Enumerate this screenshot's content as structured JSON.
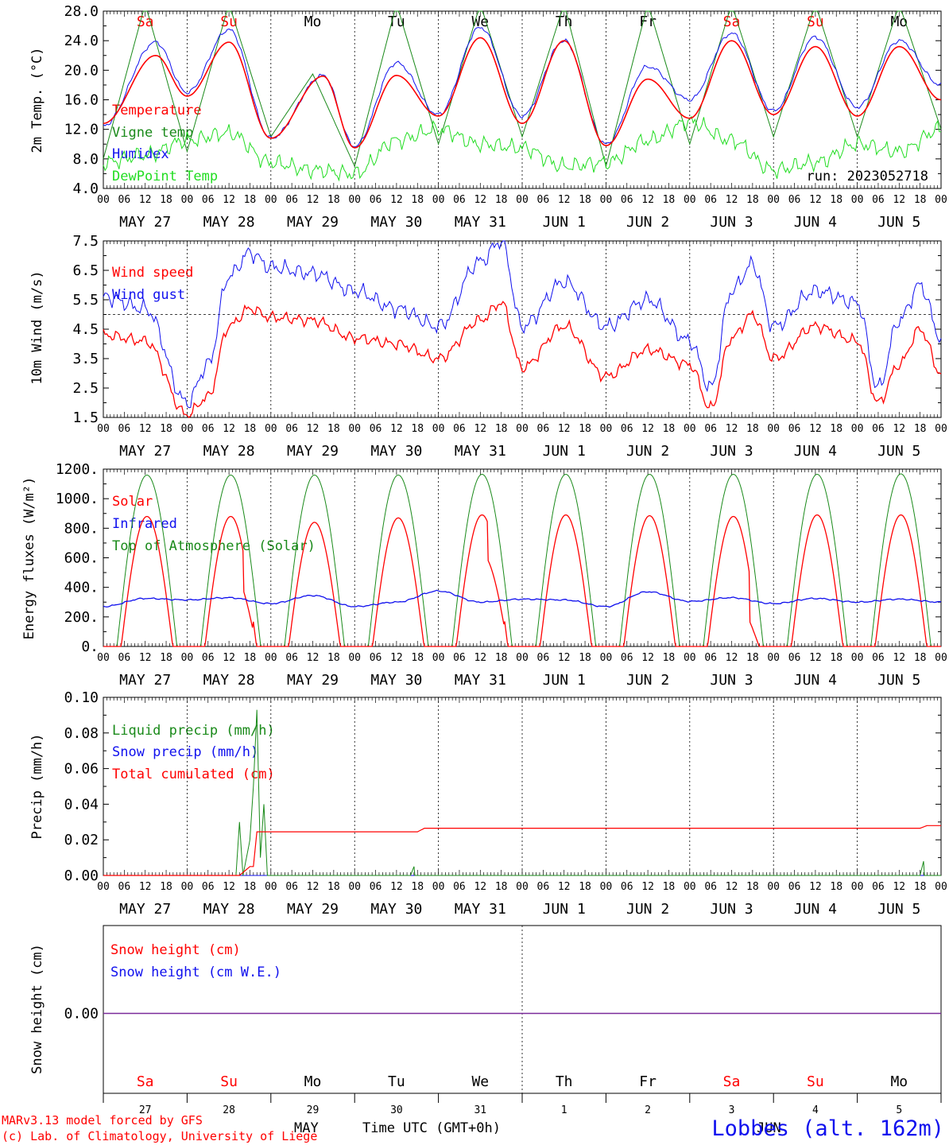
{
  "run_label": "run: 2023052718",
  "station": "Lobbes (alt. 162m)",
  "footer": {
    "line1": "MARv3.13 model forced by GFS",
    "line2": "(c) Lab. of Climatology, University of Liege",
    "time_label": "Time UTC (GMT+0h)",
    "month_may": "MAY",
    "month_jun": "JUN"
  },
  "hours": [
    "00",
    "06",
    "12",
    "18"
  ],
  "dates": [
    "MAY 27",
    "MAY 28",
    "MAY 29",
    "MAY 30",
    "MAY 31",
    "JUN  1",
    "JUN  2",
    "JUN  3",
    "JUN  4",
    "JUN  5"
  ],
  "weekdays": [
    "Sa",
    "Su",
    "Mo",
    "Tu",
    "We",
    "Th",
    "Fr",
    "Sa",
    "Su",
    "Mo"
  ],
  "weekday_colors": [
    "#ff0000",
    "#ff0000",
    "#000000",
    "#000000",
    "#000000",
    "#000000",
    "#000000",
    "#ff0000",
    "#ff0000",
    "#000000"
  ],
  "day_numbers": [
    "27",
    "28",
    "29",
    "30",
    "31",
    "1",
    "2",
    "3",
    "4",
    "5"
  ],
  "colors": {
    "red": "#ff0000",
    "green": "#1a8a1a",
    "blue": "#1010ee",
    "lime": "#22dd22",
    "purple": "#7a2a9a"
  },
  "chart_data": [
    {
      "type": "line",
      "ylabel": "2m Temp. (°C)",
      "ylim": [
        4,
        28
      ],
      "yticks": [
        "4.0",
        "8.0",
        "12.0",
        "16.0",
        "20.0",
        "24.0",
        "28.0"
      ],
      "x_unit": "hours since May 27 00 UTC",
      "series": [
        {
          "name": "Temperature",
          "x": [
            0,
            15,
            24,
            36,
            48,
            63,
            72,
            84,
            96,
            108,
            120,
            132,
            144,
            156,
            168,
            180,
            192,
            204,
            216,
            228,
            240
          ],
          "y": [
            12.8,
            22.0,
            16.5,
            23.8,
            10.8,
            19.2,
            9.5,
            19.3,
            13.8,
            24.4,
            12.8,
            24.0,
            9.8,
            18.8,
            13.5,
            24.0,
            14.0,
            23.2,
            13.8,
            23.2,
            16.0
          ]
        },
        {
          "name": "Vigne temp",
          "x": [
            0,
            12,
            24,
            36,
            48,
            60,
            72,
            84,
            96,
            108,
            120,
            132,
            144,
            156,
            168,
            180,
            192,
            204,
            216,
            228,
            240
          ],
          "y": [
            8.0,
            29.0,
            9.0,
            29.0,
            11.0,
            19.5,
            7.0,
            29.0,
            10.0,
            29.0,
            11.0,
            29.0,
            7.0,
            29.0,
            10.0,
            29.0,
            11.0,
            29.0,
            11.0,
            29.0,
            12.0
          ]
        },
        {
          "name": "Humidex",
          "x": [
            0,
            15,
            24,
            36,
            48,
            63,
            72,
            84,
            96,
            108,
            120,
            132,
            144,
            156,
            168,
            180,
            192,
            204,
            216,
            228,
            240
          ],
          "y": [
            12.5,
            23.8,
            17.0,
            25.5,
            10.8,
            19.3,
            9.7,
            21.0,
            14.0,
            25.8,
            13.8,
            24.0,
            10.0,
            20.5,
            16.0,
            25.0,
            14.5,
            24.5,
            15.0,
            24.0,
            18.0
          ]
        },
        {
          "name": "DewPoint Temp",
          "x": [
            0,
            12,
            24,
            36,
            48,
            60,
            72,
            84,
            96,
            108,
            120,
            132,
            144,
            156,
            168,
            180,
            192,
            204,
            216,
            228,
            240
          ],
          "y": [
            7.5,
            8.5,
            10.5,
            11.5,
            7.5,
            6.5,
            6.0,
            10.5,
            12.0,
            10.0,
            9.5,
            7.0,
            7.5,
            10.5,
            13.0,
            10.5,
            6.5,
            7.5,
            10.0,
            9.0,
            12.0
          ]
        }
      ]
    },
    {
      "type": "line",
      "ylabel": "10m Wind (m/s)",
      "ylim": [
        1.5,
        7.5
      ],
      "yticks": [
        "1.5",
        "2.5",
        "3.5",
        "4.5",
        "5.5",
        "6.5",
        "7.5"
      ],
      "reference_line": 5.0,
      "series": [
        {
          "name": "Wind speed",
          "x": [
            0,
            12,
            24,
            30,
            36,
            42,
            48,
            60,
            72,
            84,
            96,
            108,
            114,
            120,
            132,
            144,
            156,
            168,
            174,
            180,
            186,
            192,
            204,
            216,
            222,
            228,
            234,
            240
          ],
          "y": [
            4.3,
            4.1,
            1.6,
            2.2,
            4.6,
            5.2,
            4.9,
            4.8,
            4.2,
            4.0,
            3.5,
            4.8,
            5.4,
            3.2,
            4.6,
            2.9,
            3.8,
            3.3,
            1.8,
            4.2,
            5.0,
            3.5,
            4.6,
            4.1,
            2.0,
            3.3,
            4.5,
            3.0
          ]
        },
        {
          "name": "Wind gust",
          "x": [
            0,
            12,
            24,
            30,
            36,
            42,
            48,
            60,
            72,
            84,
            96,
            108,
            114,
            120,
            132,
            144,
            156,
            168,
            174,
            180,
            186,
            192,
            204,
            216,
            222,
            228,
            234,
            240
          ],
          "y": [
            5.6,
            5.2,
            2.0,
            3.3,
            6.3,
            7.1,
            6.6,
            6.4,
            5.8,
            5.2,
            4.6,
            6.8,
            7.5,
            4.6,
            6.1,
            4.6,
            5.5,
            4.1,
            2.5,
            5.8,
            6.7,
            4.6,
            5.8,
            5.4,
            2.5,
            4.8,
            6.0,
            4.2
          ]
        }
      ]
    },
    {
      "type": "line",
      "ylabel": "Energy fluxes (W/m²)",
      "ylim": [
        0,
        1200
      ],
      "yticks": [
        "0.",
        "200.",
        "400.",
        "600.",
        "800.",
        "1000.",
        "1200."
      ],
      "series": [
        {
          "name": "Solar",
          "daily_peak": [
            880,
            880,
            840,
            870,
            890,
            890,
            885,
            880,
            890,
            890
          ]
        },
        {
          "name": "Infrared",
          "x": [
            0,
            12,
            24,
            36,
            48,
            60,
            72,
            84,
            96,
            108,
            120,
            132,
            144,
            156,
            168,
            180,
            192,
            204,
            216,
            228,
            240
          ],
          "y": [
            270,
            325,
            315,
            330,
            290,
            345,
            270,
            300,
            375,
            300,
            320,
            315,
            270,
            370,
            305,
            330,
            290,
            325,
            300,
            320,
            300
          ]
        },
        {
          "name": "Top of Atmosphere (Solar)",
          "daily_peak": [
            1160,
            1160,
            1160,
            1160,
            1165,
            1165,
            1165,
            1165,
            1165,
            1168
          ]
        }
      ]
    },
    {
      "type": "line",
      "ylabel": "Precip (mm/h)",
      "ylim": [
        0,
        0.1
      ],
      "yticks": [
        "0.00",
        "0.02",
        "0.04",
        "0.06",
        "0.08",
        "0.10"
      ],
      "series": [
        {
          "name": "Liquid precip (mm/h)",
          "x": [
            38,
            39,
            40,
            41,
            42,
            43,
            44,
            45,
            46,
            47,
            88,
            89,
            234,
            235
          ],
          "y": [
            0,
            0.03,
            0,
            0.01,
            0.02,
            0.05,
            0.093,
            0.01,
            0.04,
            0,
            0,
            0.005,
            0,
            0.008
          ]
        },
        {
          "name": "Snow precip (mm/h)",
          "x": [
            0,
            240
          ],
          "y": [
            0,
            0
          ]
        },
        {
          "name": "Total cumulated (cm)",
          "x": [
            0,
            39,
            42,
            43,
            44,
            90,
            92,
            234,
            236,
            240
          ],
          "y": [
            0,
            0,
            0.005,
            0.005,
            0.0245,
            0.0245,
            0.0265,
            0.0265,
            0.028,
            0.028
          ]
        }
      ]
    },
    {
      "type": "line",
      "ylabel": "Snow height (cm)",
      "yticks": [
        "0.00"
      ],
      "series": [
        {
          "name": "Snow height (cm)",
          "x": [
            0,
            240
          ],
          "y": [
            0,
            0
          ]
        },
        {
          "name": "Snow height (cm W.E.)",
          "x": [
            0,
            240
          ],
          "y": [
            0,
            0
          ]
        }
      ]
    }
  ]
}
